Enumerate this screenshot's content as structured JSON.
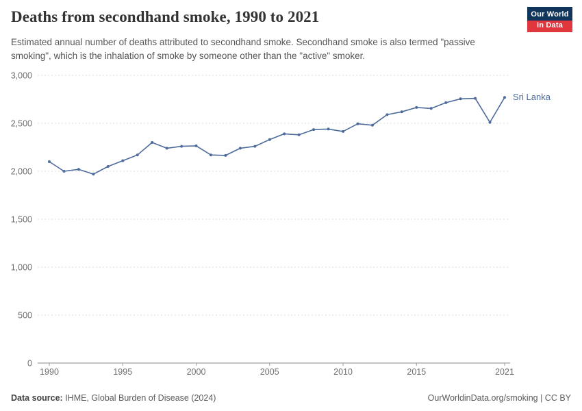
{
  "header": {
    "title": "Deaths from secondhand smoke, 1990 to 2021",
    "subtitle": "Estimated annual number of deaths attributed to secondhand smoke. Secondhand smoke is also termed \"passive smoking\", which is the inhalation of smoke by someone other than the \"active\" smoker.",
    "logo": {
      "line1": "Our World",
      "line2": "in Data"
    }
  },
  "footer": {
    "datasource_label": "Data source:",
    "datasource_value": " IHME, Global Burden of Disease (2024)",
    "right_text": "OurWorldinData.org/smoking | CC BY"
  },
  "chart_data": {
    "type": "line",
    "title": "Deaths from secondhand smoke, 1990 to 2021",
    "xlabel": "",
    "ylabel": "",
    "xlim": [
      1990,
      2021
    ],
    "ylim": [
      0,
      3000
    ],
    "xticks": [
      1990,
      1995,
      2000,
      2005,
      2010,
      2015,
      2021
    ],
    "yticks": [
      0,
      500,
      1000,
      1500,
      2000,
      2500,
      3000
    ],
    "grid": "horizontal-dashed",
    "legend_position": "end-of-line-label",
    "series": [
      {
        "name": "Sri Lanka",
        "color": "#4c6a9c",
        "x": [
          1990,
          1991,
          1992,
          1993,
          1994,
          1995,
          1996,
          1997,
          1998,
          1999,
          2000,
          2001,
          2002,
          2003,
          2004,
          2005,
          2006,
          2007,
          2008,
          2009,
          2010,
          2011,
          2012,
          2013,
          2014,
          2015,
          2016,
          2017,
          2018,
          2019,
          2020,
          2021
        ],
        "values": [
          2100,
          2000,
          2020,
          1970,
          2050,
          2110,
          2170,
          2300,
          2240,
          2260,
          2265,
          2170,
          2165,
          2240,
          2260,
          2330,
          2390,
          2380,
          2435,
          2440,
          2415,
          2495,
          2480,
          2590,
          2620,
          2665,
          2655,
          2715,
          2755,
          2760,
          2510,
          2770
        ]
      }
    ]
  }
}
